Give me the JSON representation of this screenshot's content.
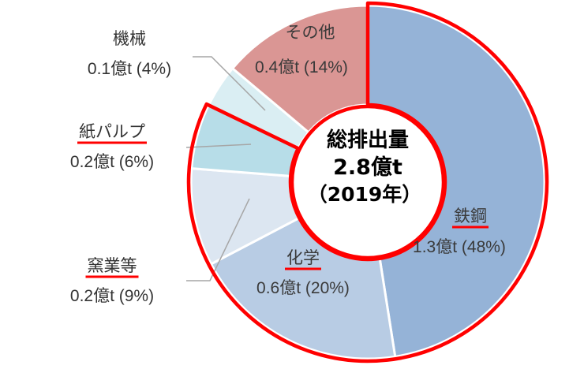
{
  "chart_data": {
    "type": "pie",
    "center_label": [
      "総排出量",
      "2.8億t",
      "（2019年）"
    ],
    "slices": [
      {
        "name": "鉄鋼",
        "value_text": "1.3億t (48%)",
        "percent": 48,
        "color": "#95b3d7",
        "highlight": true
      },
      {
        "name": "化学",
        "value_text": "0.6億t (20%)",
        "percent": 20,
        "color": "#b8cce4",
        "highlight": true
      },
      {
        "name": "窯業等",
        "value_text": "0.2億t (9%)",
        "percent": 9,
        "color": "#dce6f1",
        "highlight": true
      },
      {
        "name": "紙パルプ",
        "value_text": "0.2億t (6%)",
        "percent": 6,
        "color": "#b7dde8",
        "highlight": true
      },
      {
        "name": "機械",
        "value_text": "0.1億t (4%)",
        "percent": 4,
        "color": "#daeef3",
        "highlight": false
      },
      {
        "name": "その他",
        "value_text": "0.4億t (14%)",
        "percent": 14,
        "color": "#da9694",
        "highlight": false
      }
    ]
  }
}
